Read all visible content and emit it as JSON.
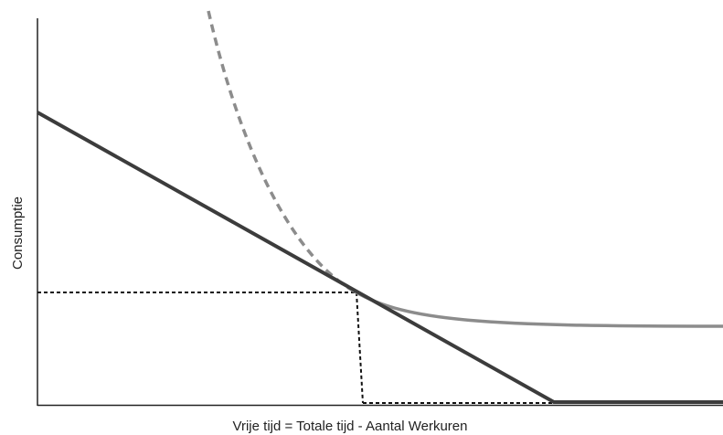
{
  "x_label": "Vrije tijd = Totale tijd - Aantal Werkuren",
  "y_label": "Consumptie"
}
